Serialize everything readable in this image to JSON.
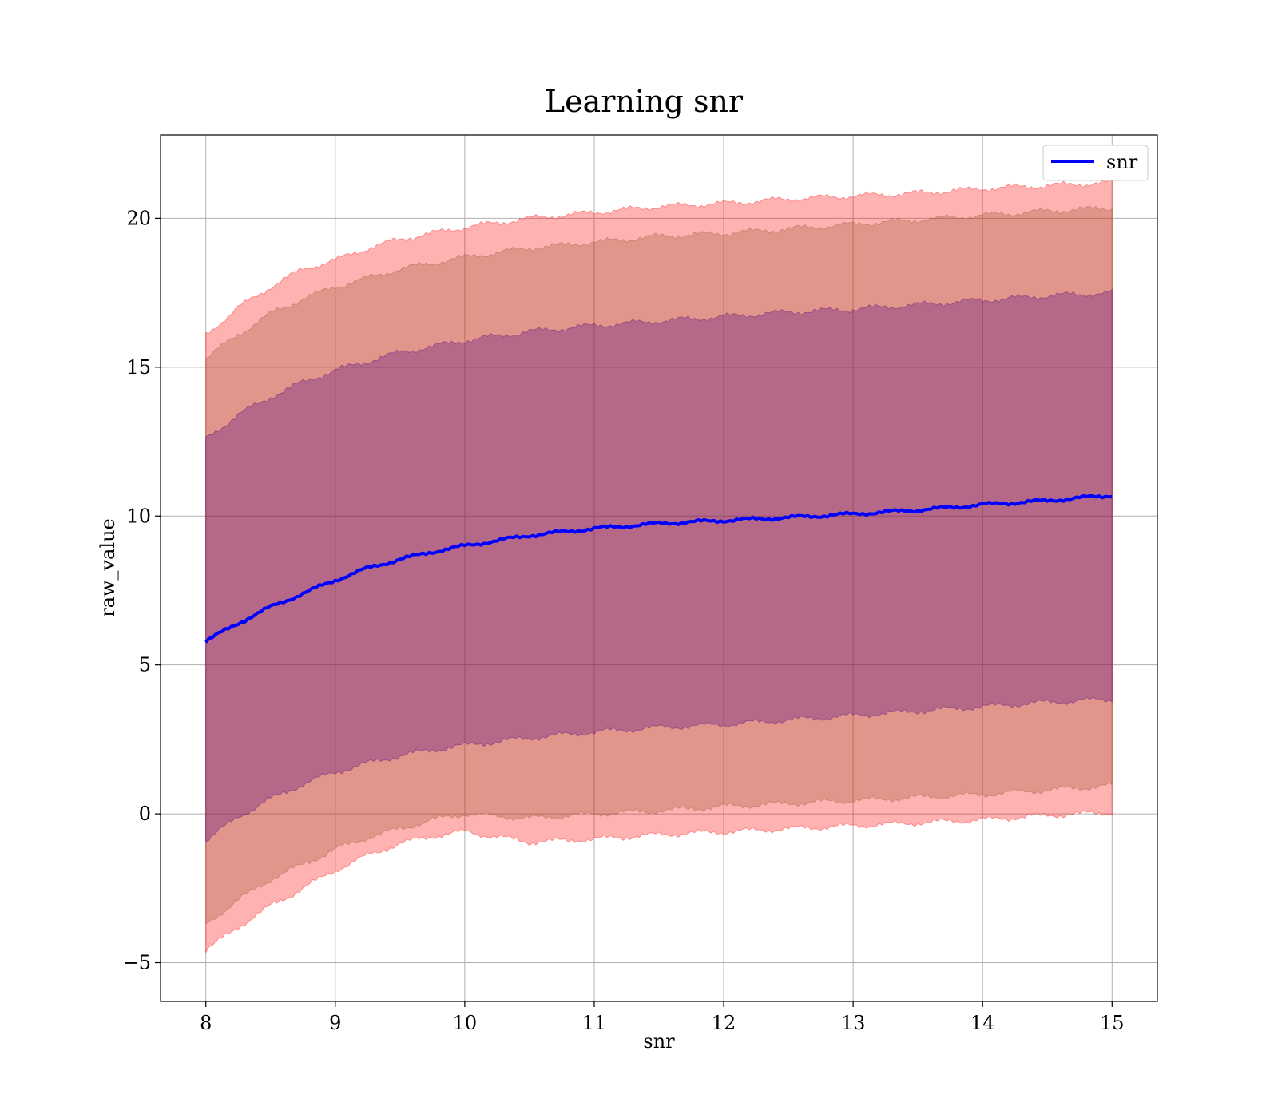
{
  "chart_data": {
    "type": "area",
    "title": "Learning snr",
    "xlabel": "snr",
    "ylabel": "raw_value",
    "xlim": [
      7.65,
      15.35
    ],
    "ylim": [
      -6.3,
      22.8
    ],
    "xticks": [
      8,
      9,
      10,
      11,
      12,
      13,
      14,
      15
    ],
    "yticks": [
      -5,
      0,
      5,
      10,
      15,
      20
    ],
    "ytick_labels": [
      "−5",
      "0",
      "5",
      "10",
      "15",
      "20"
    ],
    "grid": true,
    "legend": {
      "position": "top-right",
      "entries": [
        "snr"
      ]
    },
    "line_series": {
      "name": "snr",
      "color": "#0000ff",
      "x": [
        8.0,
        8.25,
        8.5,
        8.75,
        9.0,
        9.25,
        9.5,
        9.75,
        10.0,
        10.5,
        11.0,
        11.5,
        12.0,
        12.5,
        13.0,
        13.5,
        14.0,
        14.5,
        15.0
      ],
      "y": [
        5.8,
        6.4,
        6.95,
        7.4,
        7.85,
        8.25,
        8.55,
        8.8,
        9.0,
        9.35,
        9.58,
        9.75,
        9.85,
        9.95,
        10.07,
        10.2,
        10.38,
        10.52,
        10.7
      ]
    },
    "bands": [
      {
        "color": "#ff0000",
        "opacity": 0.3,
        "upper": [
          16.1,
          17.0,
          17.7,
          18.3,
          18.6,
          19.0,
          19.3,
          19.5,
          19.7,
          20.0,
          20.2,
          20.4,
          20.5,
          20.65,
          20.75,
          20.85,
          21.0,
          21.1,
          21.2
        ],
        "lower": [
          -4.6,
          -3.8,
          -3.1,
          -2.5,
          -1.9,
          -1.4,
          -1.0,
          -0.75,
          -0.6,
          -0.95,
          -0.85,
          -0.7,
          -0.6,
          -0.5,
          -0.4,
          -0.3,
          -0.2,
          -0.05,
          0.05
        ]
      },
      {
        "color": "#a0522d",
        "opacity": 0.3,
        "upper": [
          15.3,
          16.1,
          16.8,
          17.3,
          17.7,
          18.0,
          18.3,
          18.5,
          18.7,
          19.0,
          19.2,
          19.4,
          19.5,
          19.65,
          19.8,
          19.95,
          20.1,
          20.25,
          20.35
        ],
        "lower": [
          -3.7,
          -2.9,
          -2.2,
          -1.7,
          -1.2,
          -0.8,
          -0.5,
          -0.2,
          0.0,
          -0.15,
          0.0,
          0.1,
          0.25,
          0.35,
          0.45,
          0.55,
          0.65,
          0.8,
          0.95
        ]
      },
      {
        "color": "#4b0082",
        "opacity": 0.3,
        "upper": [
          12.6,
          13.4,
          14.0,
          14.5,
          14.9,
          15.2,
          15.5,
          15.7,
          15.9,
          16.2,
          16.4,
          16.55,
          16.7,
          16.85,
          16.95,
          17.1,
          17.25,
          17.4,
          17.5
        ],
        "lower": [
          -0.9,
          -0.1,
          0.5,
          1.0,
          1.4,
          1.7,
          1.95,
          2.15,
          2.3,
          2.55,
          2.75,
          2.9,
          3.0,
          3.15,
          3.3,
          3.45,
          3.6,
          3.75,
          3.85
        ]
      }
    ]
  }
}
